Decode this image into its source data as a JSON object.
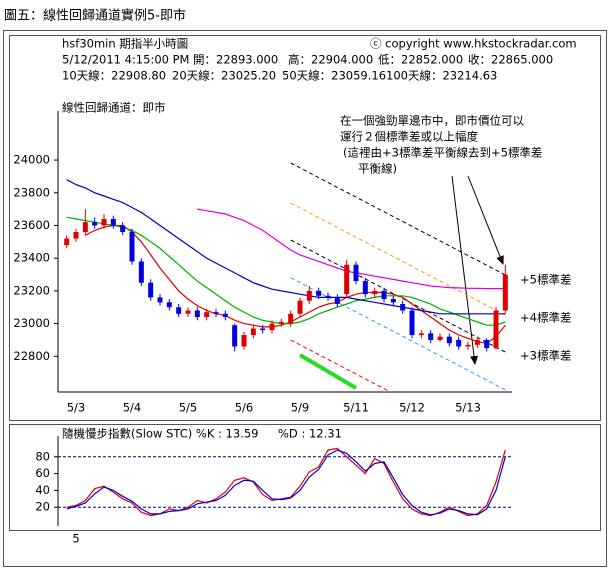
{
  "caption": "圖五：線性回歸通道實例5-即市",
  "chart_data": [
    {
      "type": "candlestick",
      "title": "hsf30min 期指半小時圖",
      "copyright": "ⓒ copyright www.hkstockradar.com",
      "info": [
        "5/12/2011 4:15:00 PM",
        "開：22893.000",
        "高：22904.000",
        "低：22852.000",
        "收：22865.000"
      ],
      "subtitle": "線性回歸通道：即市",
      "annotation": [
        "在一個強勁單邊市中，即市價位可以",
        "運行２個標準差或以上幅度",
        "(這裡由+3標準差平衡線去到+5標準差",
        "平衡線)"
      ],
      "channel_labels": [
        "+5標準差",
        "+4標準差",
        "+3標準差"
      ],
      "categories": [
        null,
        "5/3",
        null,
        null,
        null,
        null,
        null,
        "5/4",
        null,
        null,
        null,
        null,
        null,
        "5/5",
        null,
        null,
        null,
        null,
        null,
        "5/6",
        null,
        null,
        null,
        null,
        null,
        "5/9",
        null,
        null,
        null,
        null,
        null,
        "5/11",
        null,
        null,
        null,
        null,
        null,
        "5/12",
        null,
        null,
        null,
        null,
        null,
        "5/13",
        null,
        null,
        null,
        null
      ],
      "open": [
        23480,
        23520,
        23560,
        23620,
        23600,
        23640,
        23600,
        23560,
        23380,
        23250,
        23160,
        23130,
        23100,
        23060,
        23080,
        23040,
        23070,
        23060,
        22990,
        22860,
        22930,
        22970,
        22960,
        23000,
        23000,
        23060,
        23140,
        23200,
        23170,
        23160,
        23180,
        23360,
        23260,
        23180,
        23200,
        23150,
        23120,
        23080,
        22930,
        22940,
        22900,
        22920,
        22900,
        22860,
        22870,
        22900,
        22850,
        23080
      ],
      "high": [
        23540,
        23580,
        23700,
        23650,
        23670,
        23660,
        23620,
        23580,
        23400,
        23270,
        23180,
        23150,
        23120,
        23100,
        23100,
        23090,
        23090,
        23080,
        23000,
        22950,
        22990,
        22990,
        23020,
        23030,
        23080,
        23160,
        23230,
        23220,
        23190,
        23180,
        23390,
        23380,
        23280,
        23220,
        23220,
        23170,
        23140,
        23100,
        22960,
        22960,
        22940,
        22940,
        22920,
        22890,
        22920,
        22910,
        23100,
        23360
      ],
      "low": [
        23460,
        23500,
        23540,
        23580,
        23580,
        23580,
        23540,
        23360,
        23230,
        23140,
        23110,
        23080,
        23040,
        23040,
        23020,
        23020,
        23040,
        23020,
        22830,
        22840,
        22910,
        22940,
        22940,
        22980,
        22980,
        23040,
        23120,
        23150,
        23140,
        23100,
        23160,
        23240,
        23160,
        23160,
        23130,
        23110,
        23060,
        22910,
        22910,
        22880,
        22890,
        22860,
        22840,
        22840,
        22850,
        22830,
        22840,
        23060
      ],
      "close": [
        23520,
        23560,
        23620,
        23600,
        23640,
        23600,
        23560,
        23380,
        23250,
        23160,
        23130,
        23100,
        23060,
        23080,
        23040,
        23070,
        23060,
        23040,
        22860,
        22930,
        22970,
        22960,
        23000,
        23010,
        23060,
        23140,
        23200,
        23170,
        23160,
        23120,
        23360,
        23260,
        23180,
        23200,
        23150,
        23130,
        23080,
        22930,
        22940,
        22900,
        22920,
        22880,
        22860,
        22870,
        22900,
        22850,
        23080,
        23300
      ],
      "up_color": "#e00000",
      "down_color": "#0000e0",
      "series": [
        {
          "name": "10天線：22908.80",
          "color": "#e00000",
          "values": [
            null,
            null,
            23540,
            23570,
            23590,
            23600,
            23600,
            23560,
            23500,
            23420,
            23340,
            23270,
            23200,
            23150,
            23110,
            23080,
            23060,
            23050,
            23020,
            23000,
            22990,
            22980,
            22980,
            22990,
            23010,
            23040,
            23070,
            23100,
            23120,
            23130,
            23160,
            23180,
            23190,
            23190,
            23190,
            23180,
            23160,
            23120,
            23080,
            23040,
            23000,
            22960,
            22930,
            22910,
            22890,
            22880,
            22920,
            22990
          ]
        },
        {
          "name": "20天線：23025.20",
          "color": "#00b000",
          "values": [
            23650,
            23640,
            23630,
            23620,
            23610,
            23600,
            23590,
            23570,
            23540,
            23500,
            23460,
            23410,
            23360,
            23310,
            23260,
            23220,
            23180,
            23140,
            23100,
            23070,
            23040,
            23020,
            23010,
            23000,
            23000,
            23010,
            23030,
            23060,
            23080,
            23100,
            23120,
            23140,
            23150,
            23160,
            23170,
            23170,
            23170,
            23160,
            23140,
            23120,
            23090,
            23070,
            23050,
            23030,
            23010,
            22990,
            22990,
            23010
          ]
        },
        {
          "name": "50天線：23059.16",
          "color": "#0000c0",
          "values": [
            23880,
            23850,
            23830,
            23800,
            23780,
            23760,
            23740,
            23710,
            23680,
            23640,
            23600,
            23560,
            23520,
            23480,
            23440,
            23400,
            23370,
            23340,
            23310,
            23280,
            23250,
            23230,
            23210,
            23200,
            23190,
            23180,
            23170,
            23160,
            23160,
            23160,
            23160,
            23150,
            23140,
            23130,
            23120,
            23110,
            23100,
            23090,
            23080,
            23070,
            23060,
            23060,
            23060,
            23060,
            23060,
            23060,
            23060,
            23060
          ]
        },
        {
          "name": "100天線：23214.63",
          "color": "#e000e0",
          "values": [
            null,
            null,
            null,
            null,
            null,
            null,
            null,
            null,
            null,
            null,
            null,
            null,
            null,
            null,
            23700,
            23690,
            23680,
            23670,
            23650,
            23630,
            23600,
            23570,
            23530,
            23490,
            23450,
            23420,
            23400,
            23380,
            23360,
            23340,
            23320,
            23310,
            23300,
            23290,
            23280,
            23270,
            23260,
            23250,
            23240,
            23230,
            23225,
            23220,
            23218,
            23216,
            23215,
            23214,
            23214,
            23214
          ]
        }
      ],
      "channels": [
        {
          "color": "#000000",
          "values": [
            23982,
            23297
          ]
        },
        {
          "color": "#ff9900",
          "values": [
            23737,
            23052
          ]
        },
        {
          "color": "#000000",
          "values": [
            23511,
            22826
          ]
        },
        {
          "color": "#3399ff",
          "values": [
            23280,
            22595
          ]
        },
        {
          "color": "#ff0000",
          "values": [
            22900,
            22215
          ]
        }
      ],
      "highlight": {
        "color": "#22dd22",
        "values": [
          22808,
          22606
        ]
      },
      "ylim": [
        22600,
        24300
      ],
      "yticks": [
        22800,
        23000,
        23200,
        23400,
        23600,
        23800,
        24000
      ]
    },
    {
      "type": "line",
      "title": "隨機慢步指數(Slow STC)  %K : 13.59",
      "categories": [
        null,
        "5",
        null,
        null,
        null,
        null,
        null,
        null,
        null,
        null,
        null,
        null,
        null,
        null,
        null,
        null,
        null,
        null,
        null,
        null,
        null,
        null,
        null,
        null,
        null,
        null,
        null,
        null,
        null,
        null,
        null,
        null,
        null,
        null,
        null,
        null,
        null,
        null,
        null,
        null,
        null,
        null,
        null,
        null,
        null,
        null,
        null,
        null
      ],
      "series": [
        {
          "name": "%K",
          "color": "#e00000",
          "values": [
            20,
            22,
            28,
            42,
            45,
            38,
            30,
            25,
            14,
            10,
            12,
            18,
            16,
            20,
            28,
            25,
            30,
            38,
            52,
            55,
            50,
            35,
            28,
            30,
            32,
            45,
            62,
            68,
            88,
            90,
            80,
            70,
            60,
            78,
            72,
            50,
            30,
            18,
            12,
            10,
            14,
            20,
            15,
            10,
            12,
            22,
            50,
            88
          ]
        },
        {
          "name": "%D : 12.31",
          "color": "#0000e0",
          "values": [
            18,
            21,
            25,
            36,
            44,
            40,
            33,
            27,
            18,
            12,
            12,
            15,
            16,
            18,
            24,
            26,
            28,
            34,
            46,
            52,
            51,
            40,
            30,
            29,
            31,
            40,
            56,
            65,
            82,
            88,
            84,
            74,
            63,
            72,
            74,
            55,
            35,
            22,
            14,
            11,
            13,
            18,
            16,
            12,
            11,
            18,
            40,
            80
          ]
        }
      ],
      "levels": [
        20,
        80
      ],
      "ylim": [
        0,
        100
      ],
      "yticks": [
        20,
        40,
        60,
        80
      ]
    }
  ]
}
